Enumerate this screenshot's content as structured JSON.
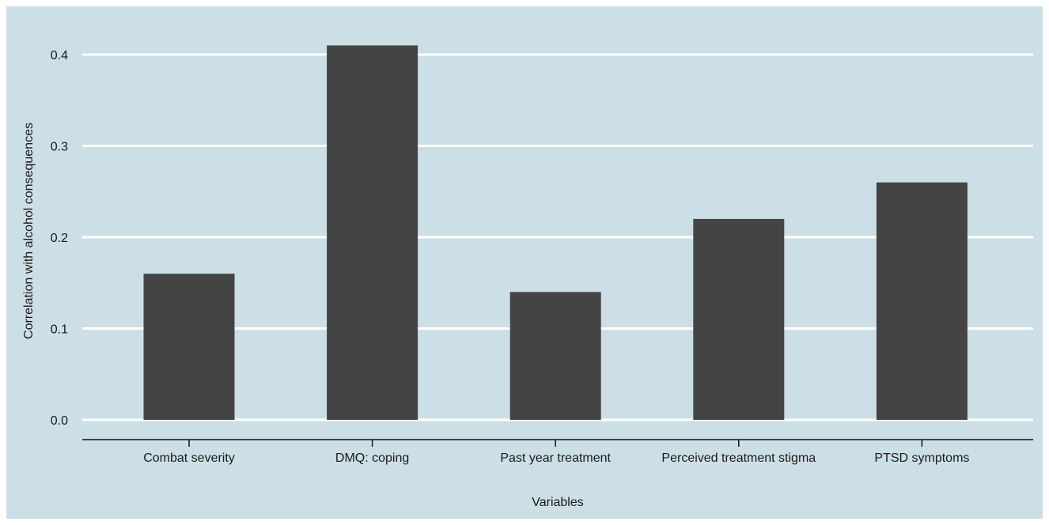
{
  "colors": {
    "panel_background": "#cddfe6",
    "gridline": "#ffffff",
    "bar": "#444444",
    "axis_line": "#111111",
    "text": "#1a1a1a"
  },
  "chart_data": {
    "type": "bar",
    "title": "",
    "xlabel": "Variables",
    "ylabel": "Correlation with alcohol consequences",
    "categories": [
      "Combat severity",
      "DMQ: coping",
      "Past year treatment",
      "Perceived treatment stigma",
      "PTSD symptoms"
    ],
    "values": [
      0.16,
      0.41,
      0.14,
      0.22,
      0.26
    ],
    "ylim": [
      0,
      0.4
    ],
    "yticks": [
      0.0,
      0.1,
      0.2,
      0.3,
      0.4
    ],
    "ytick_labels": [
      "0.0",
      "0.1",
      "0.2",
      "0.3",
      "0.4"
    ],
    "grid": "horizontal",
    "legend": "none"
  }
}
